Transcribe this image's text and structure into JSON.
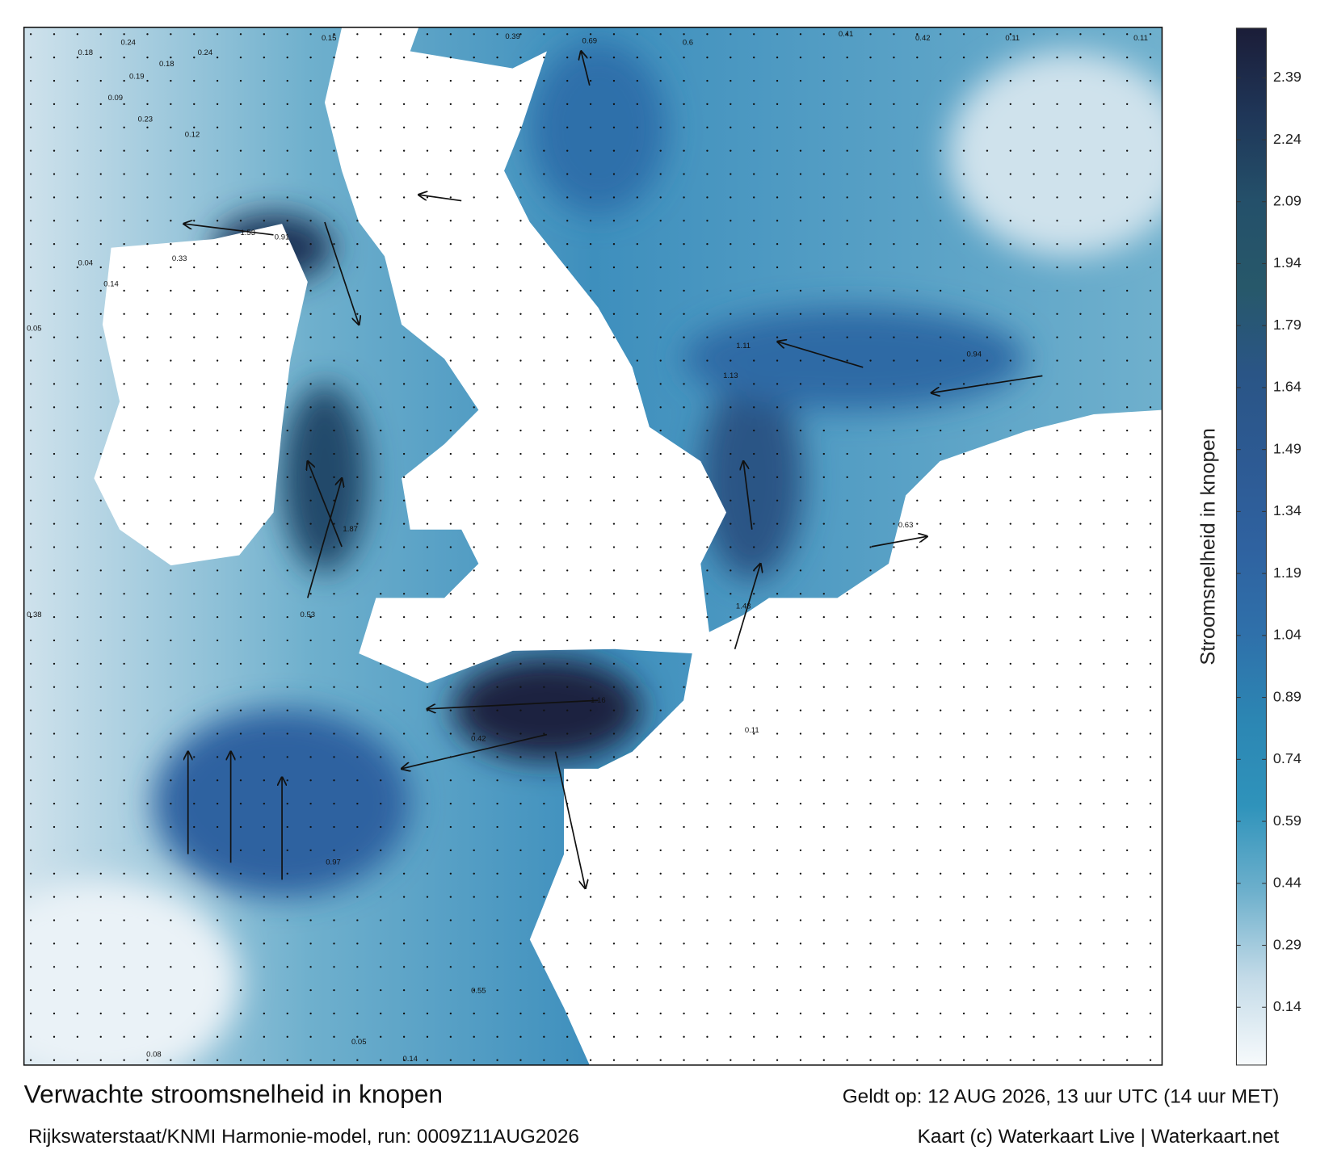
{
  "title": "Verwachte stroomsnelheid in knopen",
  "valid": "Geldt op: 12 AUG 2026, 13 uur UTC (14 uur MET)",
  "source": "Rijkswaterstaat/KNMI Harmonie-model, run: 0009Z11AUG2026",
  "credit": "Kaart (c) Waterkaart Live | Waterkaart.net",
  "colorbar": {
    "label": "Stroomsnelheid in knopen",
    "lim": [
      0,
      2.51
    ],
    "ticks": [
      0.14,
      0.29,
      0.44,
      0.59,
      0.74,
      0.89,
      1.04,
      1.19,
      1.34,
      1.49,
      1.64,
      1.79,
      1.94,
      2.09,
      2.24,
      2.39
    ],
    "colors": [
      "#f7fafc",
      "#c4dbe8",
      "#6eb0cc",
      "#2f93bb",
      "#2c86b3",
      "#2f70aa",
      "#2f62a0",
      "#2d5a93",
      "#2a5586",
      "#27586a",
      "#24506a",
      "#1f3658",
      "#1b1d38"
    ]
  },
  "map_labels": [
    "0.24",
    "0.18",
    "0.18",
    "0.24",
    "0.15",
    "0.19",
    "0.09",
    "0.23",
    "0.12",
    "1.53",
    "0.91",
    "0.33",
    "0.04",
    "0.14",
    "0.05",
    "0.39",
    "0.69",
    "0.6",
    "0.41",
    "0.42",
    "0.11",
    "0.11",
    "1.11",
    "1.13",
    "0.63",
    "0.94",
    "1.16",
    "0.11",
    "0.08",
    "0.14",
    "0.05",
    "0.38",
    "0.55",
    "0.97",
    "1.48",
    "1.87",
    "0.42",
    "0.53"
  ]
}
